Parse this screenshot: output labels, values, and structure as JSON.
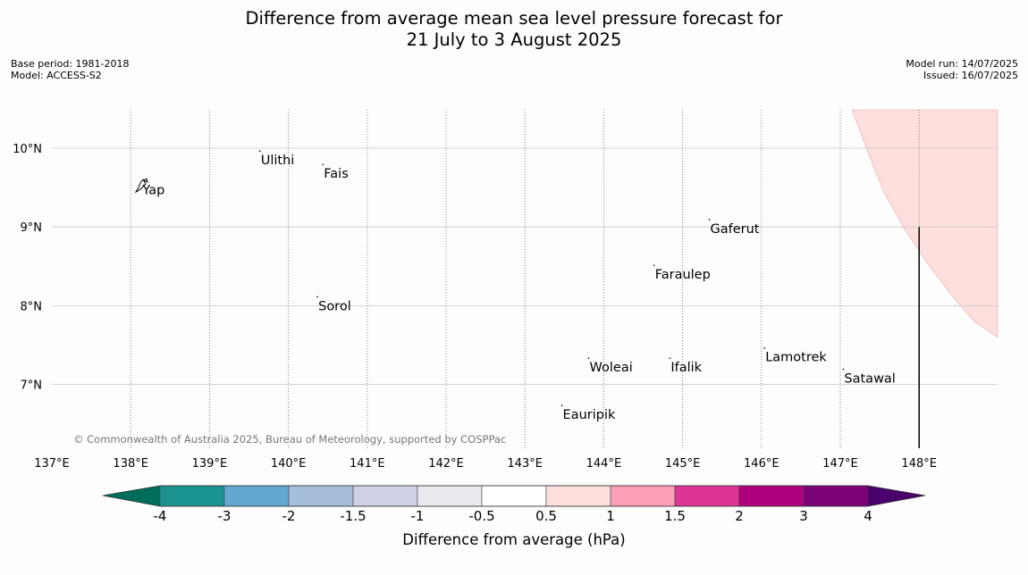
{
  "title_line1": "Difference from average mean sea level pressure forecast for",
  "title_line2": "21 July to 3 August 2025",
  "meta_left": {
    "base_period": "Base period: 1981-2018",
    "model": "Model: ACCESS-S2"
  },
  "meta_right": {
    "model_run": "Model run: 14/07/2025",
    "issued": "Issued: 16/07/2025"
  },
  "map": {
    "lon_range": [
      137.0,
      149.0
    ],
    "lat_range": [
      6.3,
      10.5
    ],
    "lon_ticks": [
      {
        "value": 137,
        "label": "137°E"
      },
      {
        "value": 138,
        "label": "138°E"
      },
      {
        "value": 139,
        "label": "139°E"
      },
      {
        "value": 140,
        "label": "140°E"
      },
      {
        "value": 141,
        "label": "141°E"
      },
      {
        "value": 142,
        "label": "142°E"
      },
      {
        "value": 143,
        "label": "143°E"
      },
      {
        "value": 144,
        "label": "144°E"
      },
      {
        "value": 145,
        "label": "145°E"
      },
      {
        "value": 146,
        "label": "146°E"
      },
      {
        "value": 147,
        "label": "147°E"
      },
      {
        "value": 148,
        "label": "148°E"
      }
    ],
    "lat_ticks": [
      {
        "value": 10,
        "label": "10°N"
      },
      {
        "value": 9,
        "label": "9°N"
      },
      {
        "value": 8,
        "label": "8°N"
      },
      {
        "value": 7,
        "label": "7°N"
      }
    ],
    "places": [
      {
        "name": "Ulithi",
        "lon": 139.65,
        "lat": 9.85
      },
      {
        "name": "Fais",
        "lon": 140.45,
        "lat": 9.68
      },
      {
        "name": "Yap",
        "lon": 138.15,
        "lat": 9.47
      },
      {
        "name": "Gaferut",
        "lon": 145.35,
        "lat": 8.98
      },
      {
        "name": "Faraulep",
        "lon": 144.65,
        "lat": 8.4
      },
      {
        "name": "Sorol",
        "lon": 140.38,
        "lat": 8.0
      },
      {
        "name": "Lamotrek",
        "lon": 146.05,
        "lat": 7.35
      },
      {
        "name": "Woleai",
        "lon": 143.82,
        "lat": 7.22
      },
      {
        "name": "Ifalik",
        "lon": 144.85,
        "lat": 7.22
      },
      {
        "name": "Satawal",
        "lon": 147.05,
        "lat": 7.08
      },
      {
        "name": "Eauripik",
        "lon": 143.48,
        "lat": 6.62
      }
    ],
    "anomaly_region": {
      "category": "0.5 to 1",
      "color": "#fde0dd",
      "boundary": [
        [
          147.15,
          10.5
        ],
        [
          147.35,
          9.95
        ],
        [
          147.55,
          9.45
        ],
        [
          147.8,
          9.0
        ],
        [
          148.1,
          8.55
        ],
        [
          148.4,
          8.15
        ],
        [
          148.7,
          7.8
        ],
        [
          149.0,
          7.6
        ],
        [
          149.0,
          10.5
        ]
      ]
    },
    "meridian_line": {
      "lon": 148.0,
      "lat_range": [
        6.3,
        9.0
      ]
    },
    "copyright": "© Commonwealth of Australia 2025, Bureau of Meteorology, supported by COSPPac"
  },
  "colorbar": {
    "title": "Difference from average (hPa)",
    "under_color": "#006d5b",
    "over_color": "#49006a",
    "colors": [
      "#1b9393",
      "#63a8d0",
      "#a6bddb",
      "#d0d1e6",
      "#ebe9ee",
      "#ffffff",
      "#fde0dd",
      "#fa9fb5",
      "#dd3497",
      "#ae017e",
      "#7a0177"
    ],
    "tick_labels": [
      "-4",
      "-3",
      "-2",
      "-1.5",
      "-1",
      "-0.5",
      "0.5",
      "1",
      "1.5",
      "2",
      "3",
      "4"
    ]
  }
}
